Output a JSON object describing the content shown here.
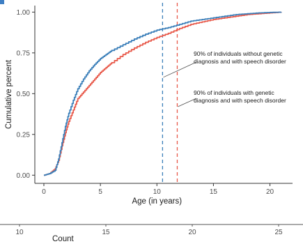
{
  "colors": {
    "with_genetic": "#e8594a",
    "without_genetic": "#3b7fb9",
    "axis": "#333333",
    "grid": "#cfcfcf"
  },
  "chart_data": [
    {
      "type": "line",
      "title": "",
      "xlabel": "Age (in years)",
      "ylabel": "Cumulative percent",
      "xlim": [
        -0.8,
        22
      ],
      "ylim": [
        -0.05,
        1.04
      ],
      "x_ticks": [
        0,
        5,
        10,
        15,
        20
      ],
      "y_ticks": [
        0.0,
        0.25,
        0.5,
        0.75,
        1.0
      ],
      "x_tick_labels": [
        "0",
        "5",
        "10",
        "15",
        "20"
      ],
      "y_tick_labels": [
        "0.00",
        "0.25",
        "0.50",
        "0.75",
        "1.00"
      ],
      "grid": false,
      "series": [
        {
          "color_key": "without_genetic",
          "x": [
            0,
            0.5,
            1.0,
            1.3,
            1.6,
            1.9,
            2.2,
            2.6,
            3.0,
            3.5,
            4.0,
            4.5,
            5.0,
            5.5,
            6.0,
            7.0,
            8.0,
            9.0,
            10.0,
            11.0,
            12.0,
            13.0,
            14.0,
            15.0,
            16.0,
            17.0,
            18.0,
            19.0,
            20.0,
            21.0
          ],
          "y": [
            0.0,
            0.01,
            0.03,
            0.1,
            0.2,
            0.3,
            0.38,
            0.46,
            0.53,
            0.59,
            0.64,
            0.68,
            0.715,
            0.74,
            0.765,
            0.8,
            0.835,
            0.865,
            0.89,
            0.905,
            0.925,
            0.945,
            0.955,
            0.965,
            0.975,
            0.985,
            0.99,
            0.995,
            0.998,
            1.0
          ]
        },
        {
          "color_key": "with_genetic",
          "x": [
            0,
            0.5,
            1.0,
            1.3,
            1.6,
            1.9,
            2.2,
            2.6,
            3.0,
            3.5,
            4.0,
            4.5,
            5.0,
            5.5,
            6.0,
            7.0,
            8.0,
            9.0,
            10.0,
            11.0,
            12.0,
            13.0,
            14.0,
            15.0,
            16.0,
            17.0,
            18.0,
            19.0,
            20.0,
            21.0
          ],
          "y": [
            0.0,
            0.01,
            0.04,
            0.09,
            0.18,
            0.26,
            0.33,
            0.4,
            0.47,
            0.51,
            0.55,
            0.59,
            0.63,
            0.66,
            0.69,
            0.74,
            0.78,
            0.815,
            0.845,
            0.87,
            0.9,
            0.925,
            0.94,
            0.955,
            0.965,
            0.975,
            0.985,
            0.99,
            0.995,
            1.0
          ]
        }
      ],
      "reference_lines": [
        {
          "x": 10.5,
          "color_key": "without_genetic",
          "style": "dashed"
        },
        {
          "x": 11.8,
          "color_key": "with_genetic",
          "style": "dashed"
        }
      ],
      "annotations": [
        {
          "lines": [
            "90% of individuals without genetic",
            "diagnosis and with speech disorder"
          ]
        },
        {
          "lines": [
            "90% of individuals with genetic",
            "diagnosis and with speech disorder"
          ]
        }
      ]
    },
    {
      "type": "axis",
      "xlabel": "Count",
      "x_ticks": [
        10,
        15,
        20,
        25
      ],
      "x_tick_labels": [
        "10",
        "15",
        "20",
        "25"
      ]
    }
  ]
}
